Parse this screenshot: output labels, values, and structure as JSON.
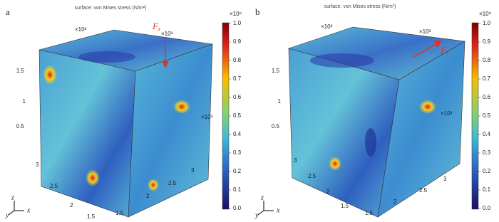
{
  "panels": [
    {
      "label": "a",
      "title": "surface: von Mises stress (N/m²)",
      "colorbar_multiplier": "×10⁸",
      "colorbar_ticks": [
        "1.0",
        "0.9",
        "0.8",
        "0.7",
        "0.6",
        "0.5",
        "0.4",
        "0.3",
        "0.2",
        "0.1",
        "0.0"
      ],
      "force": {
        "symbol": "F",
        "subscript": "z"
      },
      "scale_labels": [
        "×10³",
        "×10³",
        "×10³"
      ],
      "vertical_ticks": [
        "1.5",
        "1",
        "0.5"
      ],
      "left_ticks": [
        "3",
        "2.5",
        "2",
        "1.5"
      ],
      "right_ticks": [
        "1.5",
        "2",
        "2.5",
        "3"
      ],
      "axes": [
        "y",
        "z",
        "x"
      ]
    },
    {
      "label": "b",
      "title": "surface: von Mises stress (N/m²)",
      "colorbar_multiplier": "×10⁸",
      "colorbar_ticks": [
        "1.0",
        "0.9",
        "0.8",
        "0.7",
        "0.6",
        "0.5",
        "0.4",
        "0.3",
        "0.2",
        "0.1",
        "0.0"
      ],
      "force": {
        "symbol": "F",
        "subscript": "y"
      },
      "scale_labels": [
        "×10³",
        "×10³",
        "×10³"
      ],
      "vertical_ticks": [
        "1.5",
        "1",
        "0.5"
      ],
      "left_ticks": [
        "3",
        "2.5",
        "2",
        "1.5"
      ],
      "right_ticks": [
        "1.5",
        "2",
        "2.5",
        "3"
      ],
      "axes": [
        "y",
        "z",
        "x"
      ]
    }
  ]
}
